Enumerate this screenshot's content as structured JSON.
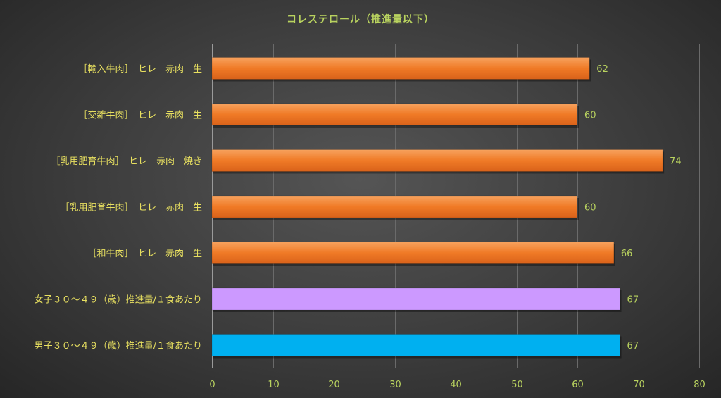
{
  "chart_data": {
    "type": "bar",
    "orientation": "horizontal",
    "title": "コレステロール（推進量以下）",
    "categories": [
      "［輸入牛肉］　ヒレ　赤肉　生",
      "［交雑牛肉］　ヒレ　赤肉　生",
      "［乳用肥育牛肉］　ヒレ　赤肉　焼き",
      "［乳用肥育牛肉］　ヒレ　赤肉　生",
      "［和牛肉］　ヒレ　赤肉　生",
      "女子３０～４９（歳）推進量/１食あたり",
      "男子３０～４９（歳）推進量/１食あたり"
    ],
    "values": [
      62,
      60,
      74,
      60,
      66,
      67,
      67
    ],
    "bar_colors": [
      "#f07a26",
      "#f07a26",
      "#f07a26",
      "#f07a26",
      "#f07a26",
      "#cc99ff",
      "#00b0f0"
    ],
    "xlim": [
      0,
      80
    ],
    "xticks": [
      0,
      10,
      20,
      30,
      40,
      50,
      60,
      70,
      80
    ],
    "grid": "vertical",
    "legend": "none",
    "xlabel": "",
    "ylabel": ""
  }
}
